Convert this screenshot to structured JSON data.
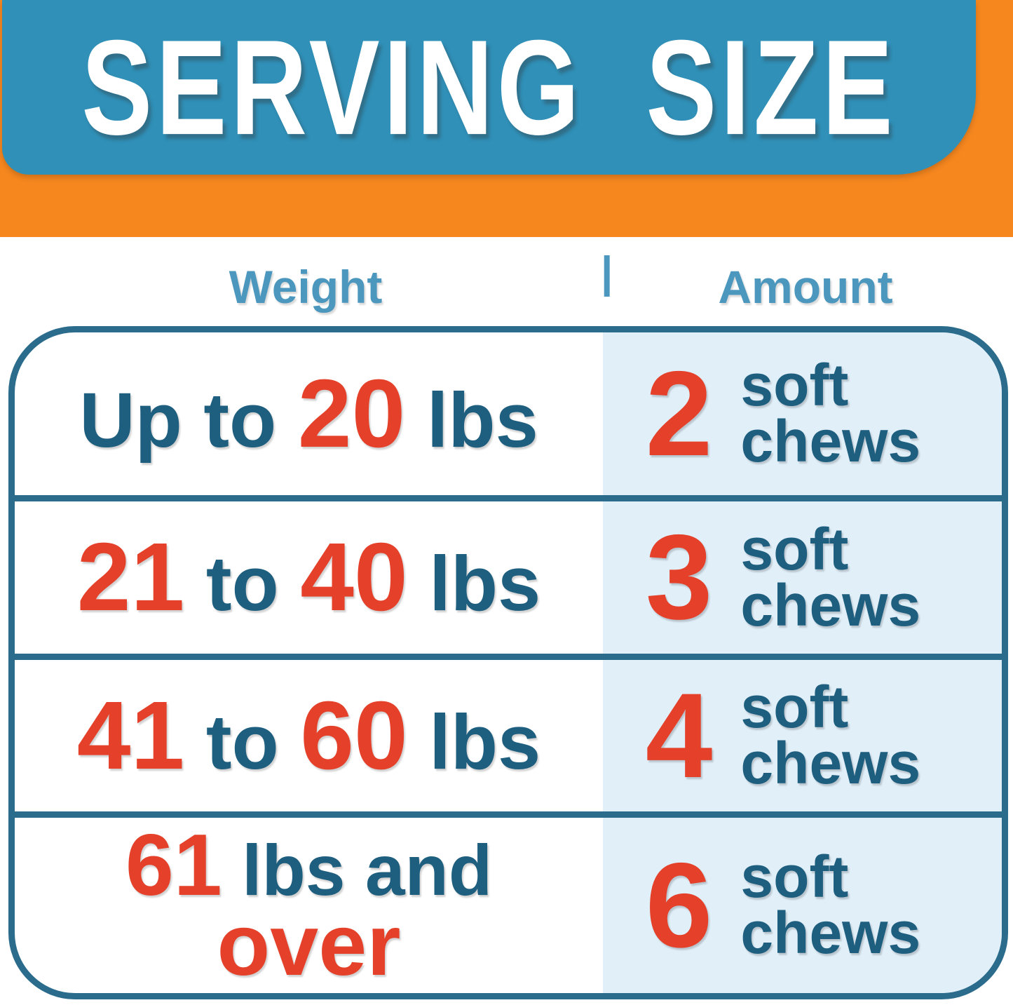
{
  "colors": {
    "orange": "#f6871f",
    "banner-blue": "#3090b8",
    "header-blue": "#4c97be",
    "teal-dark": "#1e5e7e",
    "red": "#e4402a",
    "border-teal": "#2b6b8c",
    "amount-bg": "#e1eff9"
  },
  "banner": {
    "title": "SERVING SIZE"
  },
  "headers": {
    "weight": "Weight",
    "separator": "|",
    "amount": "Amount"
  },
  "chart_data": {
    "type": "table",
    "title": "SERVING SIZE",
    "columns": [
      "Weight",
      "Amount"
    ],
    "rows": [
      {
        "weight": "Up to 20 lbs",
        "amount": "2 soft chews",
        "weight_parts": [
          {
            "text": "Up to ",
            "color": "teal"
          },
          {
            "text": "20",
            "color": "red"
          },
          {
            "text": " lbs",
            "color": "teal"
          }
        ],
        "amount_number": "2",
        "amount_unit": [
          "soft",
          "chews"
        ]
      },
      {
        "weight": "21 to 40 lbs",
        "amount": "3 soft chews",
        "weight_parts": [
          {
            "text": "21",
            "color": "red"
          },
          {
            "text": " to ",
            "color": "teal"
          },
          {
            "text": "40",
            "color": "red"
          },
          {
            "text": " lbs",
            "color": "teal"
          }
        ],
        "amount_number": "3",
        "amount_unit": [
          "soft",
          "chews"
        ]
      },
      {
        "weight": "41 to 60 lbs",
        "amount": "4 soft chews",
        "weight_parts": [
          {
            "text": "41",
            "color": "red"
          },
          {
            "text": " to ",
            "color": "teal"
          },
          {
            "text": "60",
            "color": "red"
          },
          {
            "text": " lbs",
            "color": "teal"
          }
        ],
        "amount_number": "4",
        "amount_unit": [
          "soft",
          "chews"
        ]
      },
      {
        "weight": "61 lbs and over",
        "amount": "6 soft chews",
        "weight_parts_line1": [
          {
            "text": "61",
            "color": "red"
          },
          {
            "text": " lbs and",
            "color": "teal"
          }
        ],
        "weight_parts_line2": [
          {
            "text": "over",
            "color": "red"
          }
        ],
        "amount_number": "6",
        "amount_unit": [
          "soft",
          "chews"
        ]
      }
    ]
  }
}
